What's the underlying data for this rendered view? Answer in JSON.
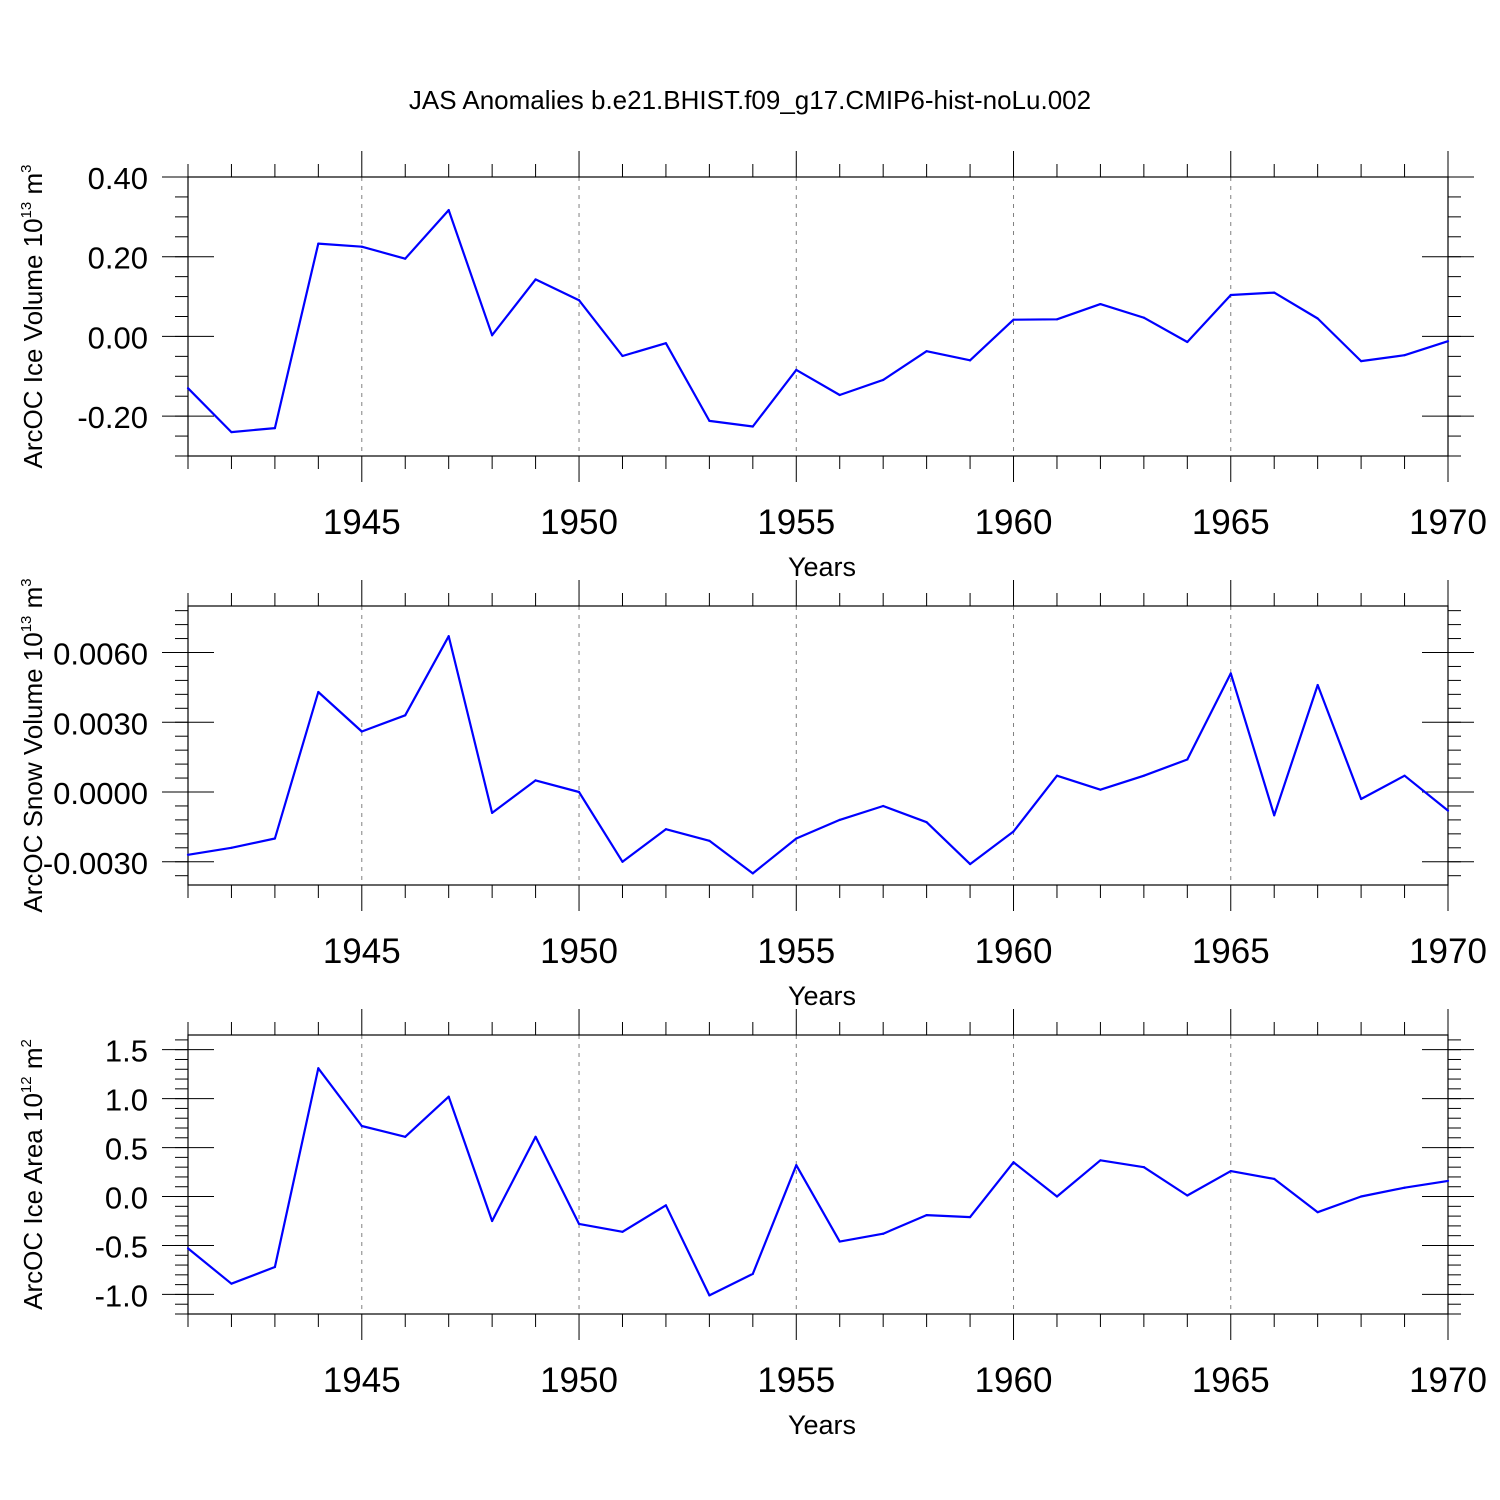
{
  "title": "JAS Anomalies b.e21.BHIST.f09_g17.CMIP6-hist-noLu.002",
  "colors": {
    "line": "#0000ff",
    "grid": "#808080",
    "frame": "#000000"
  },
  "chart_data": [
    {
      "type": "line",
      "ylabel": "ArcOC Ice Volume 10",
      "ylabel_exp": "13",
      "ylabel_unit": " m",
      "ylabel_unit_exp": "3",
      "xlabel": "Years",
      "xlim": [
        1941,
        1970
      ],
      "ylim": [
        -0.3,
        0.4
      ],
      "yticks": [
        0.4,
        0.2,
        0.0,
        -0.2
      ],
      "ytick_labels": [
        "0.40",
        "0.20",
        "0.00",
        "-0.20"
      ],
      "yminor_step": 0.05,
      "xticks": [
        1945,
        1950,
        1955,
        1960,
        1965,
        1970
      ],
      "xtick_labels": [
        "1945",
        "1950",
        "1955",
        "1960",
        "1965",
        "1970"
      ],
      "x": [
        1941,
        1942,
        1943,
        1944,
        1945,
        1946,
        1947,
        1948,
        1949,
        1950,
        1951,
        1952,
        1953,
        1954,
        1955,
        1956,
        1957,
        1958,
        1959,
        1960,
        1961,
        1962,
        1963,
        1964,
        1965,
        1966,
        1967,
        1968,
        1969,
        1970
      ],
      "values": [
        -0.13,
        -0.24,
        -0.23,
        0.233,
        0.225,
        0.195,
        0.317,
        0.003,
        0.143,
        0.091,
        -0.049,
        -0.017,
        -0.212,
        -0.226,
        -0.084,
        -0.147,
        -0.109,
        -0.037,
        -0.06,
        0.042,
        0.043,
        0.081,
        0.047,
        -0.014,
        0.104,
        0.11,
        0.045,
        -0.062,
        -0.047,
        -0.012
      ]
    },
    {
      "type": "line",
      "ylabel": "ArcOC Snow Volume 10",
      "ylabel_exp": "13",
      "ylabel_unit": " m",
      "ylabel_unit_exp": "3",
      "xlabel": "Years",
      "xlim": [
        1941,
        1970
      ],
      "ylim": [
        -0.004,
        0.008
      ],
      "yticks": [
        0.006,
        0.003,
        0.0,
        -0.003
      ],
      "ytick_labels": [
        "0.0060",
        "0.0030",
        "0.0000",
        "-0.0030"
      ],
      "yminor_step": 0.0006,
      "xticks": [
        1945,
        1950,
        1955,
        1960,
        1965,
        1970
      ],
      "xtick_labels": [
        "1945",
        "1950",
        "1955",
        "1960",
        "1965",
        "1970"
      ],
      "x": [
        1941,
        1942,
        1943,
        1944,
        1945,
        1946,
        1947,
        1948,
        1949,
        1950,
        1951,
        1952,
        1953,
        1954,
        1955,
        1956,
        1957,
        1958,
        1959,
        1960,
        1961,
        1962,
        1963,
        1964,
        1965,
        1966,
        1967,
        1968,
        1969,
        1970
      ],
      "values": [
        -0.0027,
        -0.0024,
        -0.002,
        0.0043,
        0.0026,
        0.0033,
        0.0067,
        -0.0009,
        0.0005,
        0.0,
        -0.003,
        -0.0016,
        -0.0021,
        -0.0035,
        -0.002,
        -0.0012,
        -0.0006,
        -0.0013,
        -0.0031,
        -0.0017,
        0.0007,
        0.0001,
        0.0007,
        0.0014,
        0.0051,
        -0.001,
        0.0046,
        -0.0003,
        0.0007,
        -0.0008
      ]
    },
    {
      "type": "line",
      "ylabel": "ArcOC Ice Area 10",
      "ylabel_exp": "12",
      "ylabel_unit": " m",
      "ylabel_unit_exp": "2",
      "xlabel": "Years",
      "xlim": [
        1941,
        1970
      ],
      "ylim": [
        -1.2,
        1.65
      ],
      "yticks": [
        1.5,
        1.0,
        0.5,
        0.0,
        -0.5,
        -1.0
      ],
      "ytick_labels": [
        "1.5",
        "1.0",
        "0.5",
        "0.0",
        "-0.5",
        "-1.0"
      ],
      "yminor_step": 0.1,
      "xticks": [
        1945,
        1950,
        1955,
        1960,
        1965,
        1970
      ],
      "xtick_labels": [
        "1945",
        "1950",
        "1955",
        "1960",
        "1965",
        "1970"
      ],
      "x": [
        1941,
        1942,
        1943,
        1944,
        1945,
        1946,
        1947,
        1948,
        1949,
        1950,
        1951,
        1952,
        1953,
        1954,
        1955,
        1956,
        1957,
        1958,
        1959,
        1960,
        1961,
        1962,
        1963,
        1964,
        1965,
        1966,
        1967,
        1968,
        1969,
        1970
      ],
      "values": [
        -0.53,
        -0.89,
        -0.72,
        1.31,
        0.72,
        0.61,
        1.02,
        -0.25,
        0.61,
        -0.28,
        -0.36,
        -0.09,
        -1.01,
        -0.79,
        0.32,
        -0.46,
        -0.38,
        -0.19,
        -0.21,
        0.35,
        0.0,
        0.37,
        0.3,
        0.01,
        0.26,
        0.18,
        -0.16,
        0.0,
        0.09,
        0.16
      ]
    }
  ]
}
